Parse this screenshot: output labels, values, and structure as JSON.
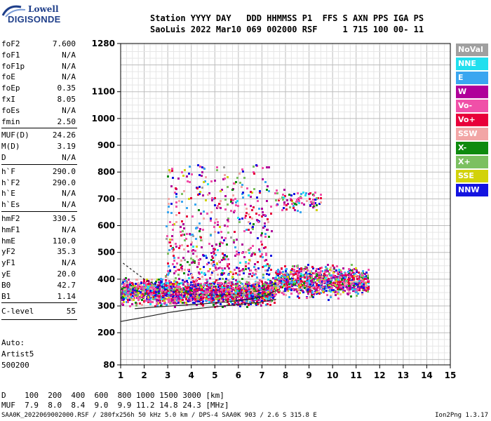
{
  "logo": {
    "line1": "Lowell",
    "line2": "DIGISONDE"
  },
  "header": {
    "row1": "Station YYYY DAY   DDD HHMMSS P1  FFS S AXN PPS IGA PS",
    "row2": "SaoLuis 2022 Mar10 069 002000 RSF     1 715 100 00- 11"
  },
  "params": [
    {
      "k": "foF2",
      "v": "7.600"
    },
    {
      "k": "foF1",
      "v": "N/A"
    },
    {
      "k": "foF1p",
      "v": "N/A"
    },
    {
      "k": "foE",
      "v": "N/A"
    },
    {
      "k": "foEp",
      "v": "0.35"
    },
    {
      "k": "fxI",
      "v": "8.05"
    },
    {
      "k": "foEs",
      "v": "N/A"
    },
    {
      "k": "fmin",
      "v": "2.50"
    },
    {
      "k": "MUF(D)",
      "v": "24.26"
    },
    {
      "k": "M(D)",
      "v": "3.19"
    },
    {
      "k": "D",
      "v": "N/A"
    },
    {
      "k": "h`F",
      "v": "290.0"
    },
    {
      "k": "h`F2",
      "v": "290.0"
    },
    {
      "k": "h`E",
      "v": "N/A"
    },
    {
      "k": "h`Es",
      "v": "N/A"
    },
    {
      "k": "hmF2",
      "v": "330.5"
    },
    {
      "k": "hmF1",
      "v": "N/A"
    },
    {
      "k": "hmE",
      "v": "110.0"
    },
    {
      "k": "yF2",
      "v": "35.3"
    },
    {
      "k": "yF1",
      "v": "N/A"
    },
    {
      "k": "yE",
      "v": "20.0"
    },
    {
      "k": "B0",
      "v": "42.7"
    },
    {
      "k": "B1",
      "v": "1.14"
    },
    {
      "k": "C-level",
      "v": "55"
    }
  ],
  "autoscale": {
    "label": "Auto:",
    "artist": "Artist5",
    "version": "500200"
  },
  "legend": [
    {
      "label": "NoVal",
      "color": "#a0a0a0"
    },
    {
      "label": "NNE",
      "color": "#22dfee"
    },
    {
      "label": "E",
      "color": "#3aa6f0"
    },
    {
      "label": "W",
      "color": "#b0009a"
    },
    {
      "label": "Vo-",
      "color": "#f050a8"
    },
    {
      "label": "Vo+",
      "color": "#e8003a"
    },
    {
      "label": "SSW",
      "color": "#f2a6a6"
    },
    {
      "label": "X-",
      "color": "#0e8a0e"
    },
    {
      "label": "X+",
      "color": "#7cc060"
    },
    {
      "label": "SSE",
      "color": "#d2d20a"
    },
    {
      "label": "NNW",
      "color": "#1414e0"
    }
  ],
  "footer": {
    "distance_row": "D    100  200  400  600  800 1000 1500 3000 [km]",
    "muf_row": "MUF  7.9  8.0  8.4  9.0  9.9 11.2 14.8 24.3 [MHz]",
    "file_info": "SAA0K_2022069002000.RSF / 280fx256h 50 kHz 5.0 km / DPS-4 SAA0K 903 / 2.6 S 315.8 E",
    "version": "Ion2Png 1.3.17"
  },
  "chart_data": {
    "type": "scatter",
    "xlim": [
      1,
      15
    ],
    "ylim": [
      80,
      1280
    ],
    "x_ticks": [
      1,
      2,
      3,
      4,
      5,
      6,
      7,
      8,
      9,
      10,
      11,
      12,
      13,
      14,
      15
    ],
    "y_ticks": [
      80,
      200,
      300,
      400,
      500,
      600,
      700,
      800,
      900,
      1000,
      1100,
      1280
    ],
    "grid": true,
    "clusters": [
      {
        "name": "F-trace",
        "x": [
          1.0,
          7.5
        ],
        "y": [
          290,
          420
        ],
        "density": 2200
      },
      {
        "name": "F-trace-2",
        "x": [
          7.5,
          11.5
        ],
        "y": [
          320,
          470
        ],
        "density": 1100
      },
      {
        "name": "spread-F",
        "x": [
          2.9,
          7.4
        ],
        "y": [
          420,
          830
        ],
        "density": 520
      },
      {
        "name": "multi-hop",
        "x": [
          7.5,
          9.5
        ],
        "y": [
          640,
          750
        ],
        "density": 90
      }
    ],
    "series": [
      {
        "name": "profile-lower",
        "x": [
          1,
          2,
          3,
          4,
          5,
          6,
          7,
          7.6
        ],
        "y": [
          242,
          258,
          275,
          288,
          297,
          305,
          315,
          325
        ]
      },
      {
        "name": "profile-upper",
        "x": [
          1.6,
          2.5,
          3.5,
          4.5,
          5.5,
          6.5,
          7.2,
          7.6
        ],
        "y": [
          290,
          296,
          302,
          308,
          315,
          325,
          340,
          358
        ]
      },
      {
        "name": "x-trace",
        "x": [
          1.1,
          2.0,
          3.0,
          4.0,
          5.0,
          6.0,
          7.0,
          7.6
        ],
        "y": [
          460,
          400,
          360,
          345,
          340,
          345,
          360,
          385
        ]
      }
    ]
  }
}
